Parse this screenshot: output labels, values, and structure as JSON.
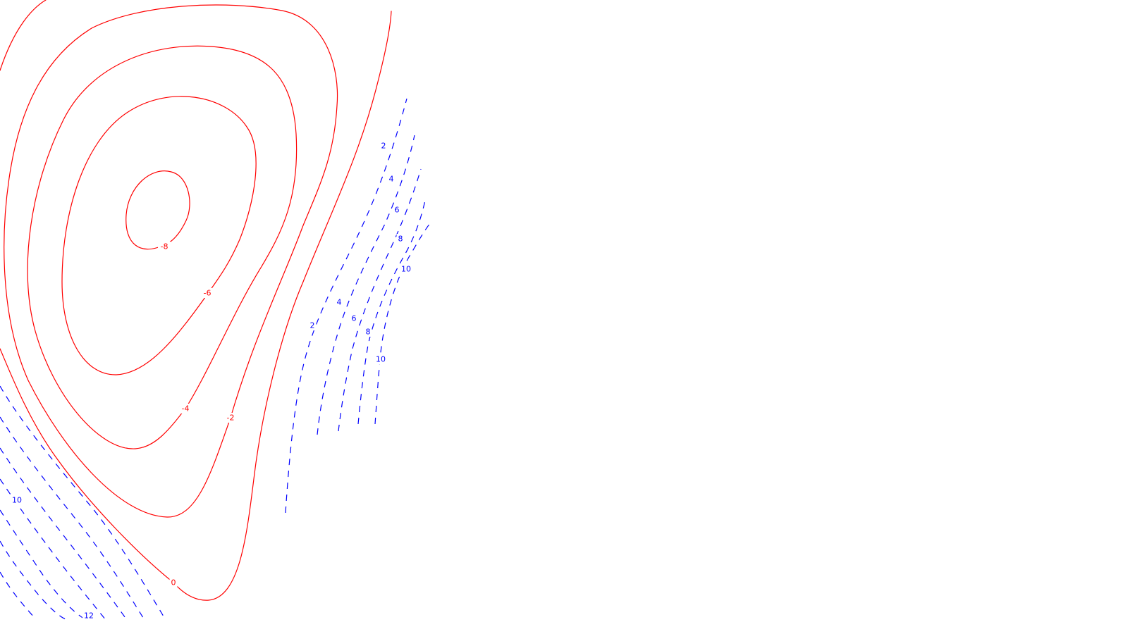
{
  "chart_data": {
    "type": "contour",
    "title": "",
    "xlabel": "",
    "ylabel": "",
    "axes_shown": false,
    "grid": false,
    "legend": "none",
    "colors": {
      "negative": "#ff0000",
      "positive": "#0000ff",
      "background": "#ffffff"
    },
    "line_styles": {
      "negative": "solid",
      "positive": "dashed"
    },
    "levels": [
      {
        "value": -8,
        "label": "-8",
        "sign": "negative"
      },
      {
        "value": -6,
        "label": "-6",
        "sign": "negative"
      },
      {
        "value": -4,
        "label": "-4",
        "sign": "negative"
      },
      {
        "value": -2,
        "label": "-2",
        "sign": "negative"
      },
      {
        "value": 0,
        "label": "0",
        "sign": "negative"
      },
      {
        "value": 2,
        "label": "2",
        "sign": "positive",
        "group": "middle"
      },
      {
        "value": 4,
        "label": "4",
        "sign": "positive",
        "group": "middle"
      },
      {
        "value": 6,
        "label": "6",
        "sign": "positive",
        "group": "middle"
      },
      {
        "value": 8,
        "label": "8",
        "sign": "positive",
        "group": "middle"
      },
      {
        "value": 10,
        "label": "10",
        "sign": "positive",
        "group": "middle"
      },
      {
        "value": 2,
        "label": "2",
        "sign": "positive",
        "group": "upper"
      },
      {
        "value": 4,
        "label": "4",
        "sign": "positive",
        "group": "upper"
      },
      {
        "value": 6,
        "label": "6",
        "sign": "positive",
        "group": "upper"
      },
      {
        "value": 8,
        "label": "8",
        "sign": "positive",
        "group": "upper"
      },
      {
        "value": 10,
        "label": "10",
        "sign": "positive",
        "group": "upper"
      },
      {
        "value": 10,
        "label": "10",
        "sign": "positive",
        "group": "lower-left"
      },
      {
        "value": 12,
        "label": "12",
        "sign": "positive",
        "group": "lower-left"
      }
    ]
  }
}
